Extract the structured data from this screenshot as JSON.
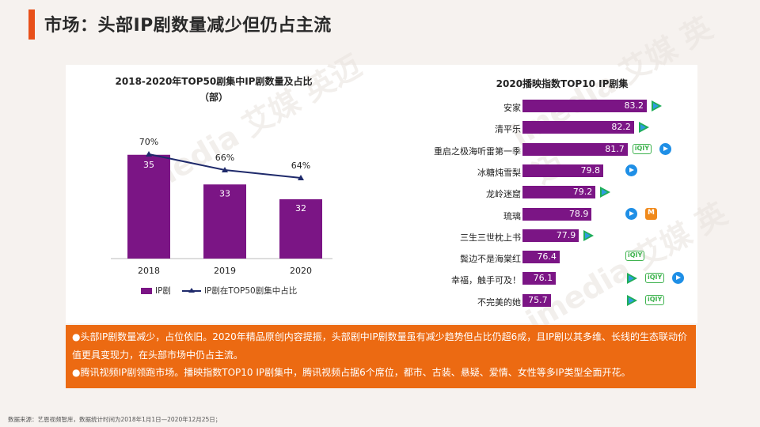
{
  "page": {
    "title": "市场：头部IP剧数量减少但仍占主流",
    "watermark": "imedia 艾媒 英迈",
    "source": "数据来源：艺恩视频智库，数据统计时间为2018年1月1日—2020年12月25日；"
  },
  "left_chart": {
    "title_line1": "2018-2020年TOP50剧集中IP剧数量及占比",
    "title_line2": "（部）",
    "legend_bar": "IP剧",
    "legend_line": "IP剧在TOP50剧集中占比"
  },
  "right_chart": {
    "title": "2020播映指数TOP10 IP剧集"
  },
  "chart_data": [
    {
      "type": "bar",
      "title": "2018-2020年TOP50剧集中IP剧数量及占比（部）",
      "categories": [
        "2018",
        "2019",
        "2020"
      ],
      "series": [
        {
          "name": "IP剧",
          "type": "bar",
          "values": [
            35,
            33,
            32
          ],
          "color": "#7b1585"
        },
        {
          "name": "IP剧在TOP50剧集中占比",
          "type": "line",
          "values": [
            70,
            66,
            64
          ],
          "labels": [
            "70%",
            "66%",
            "64%"
          ],
          "color": "#1f2a6b"
        }
      ],
      "bar_ylim": [
        28,
        36
      ],
      "line_ylim": [
        50,
        80
      ],
      "grid": false,
      "legend_position": "bottom"
    },
    {
      "type": "bar",
      "orientation": "horizontal",
      "title": "2020播映指数TOP10 IP剧集",
      "categories": [
        "安家",
        "清平乐",
        "重启之极海听雷第一季",
        "冰糖炖雪梨",
        "龙岭迷窟",
        "琉璃",
        "三生三世枕上书",
        "鬓边不是海棠红",
        "幸福，触手可及！",
        "不完美的她"
      ],
      "values": [
        83.2,
        82.2,
        81.7,
        79.8,
        79.2,
        78.9,
        77.9,
        76.4,
        76.1,
        75.7
      ],
      "labels": [
        "83.2",
        "82.2",
        "81.7",
        "79.8",
        "79.2",
        "78.9",
        "77.9",
        "76.4",
        "76.1",
        "75.7"
      ],
      "xlim": [
        73.5,
        84
      ],
      "platforms": [
        [
          "tencent-video-icon"
        ],
        [
          "tencent-video-icon"
        ],
        [
          "iqiyi-icon",
          "youku-icon"
        ],
        [
          "youku-icon"
        ],
        [
          "tencent-video-icon"
        ],
        [
          "youku-icon",
          "mgtv-icon"
        ],
        [
          "tencent-video-icon"
        ],
        [
          "iqiyi-icon"
        ],
        [
          "tencent-video-icon",
          "iqiyi-icon",
          "youku-icon"
        ],
        [
          "tencent-video-icon",
          "iqiyi-icon"
        ]
      ],
      "color": "#7b1585",
      "grid": false
    }
  ],
  "summary": {
    "point1": "●头部IP剧数量减少，占位依旧。2020年精品原创内容提振，头部剧中IP剧数量虽有减少趋势但占比仍超6成，且IP剧以其多维、长线的生态联动价值更具变现力，在头部市场中仍占主流。",
    "point2": "●腾讯视频IP剧领跑市场。播映指数TOP10 IP剧集中，腾讯视频占据6个席位，都市、古装、悬疑、爱情、女性等多IP类型全面开花。"
  },
  "colors": {
    "accent": "#e8501a",
    "bar": "#7b1585",
    "line": "#1f2a6b",
    "summary_bg": "#ec6a12"
  }
}
